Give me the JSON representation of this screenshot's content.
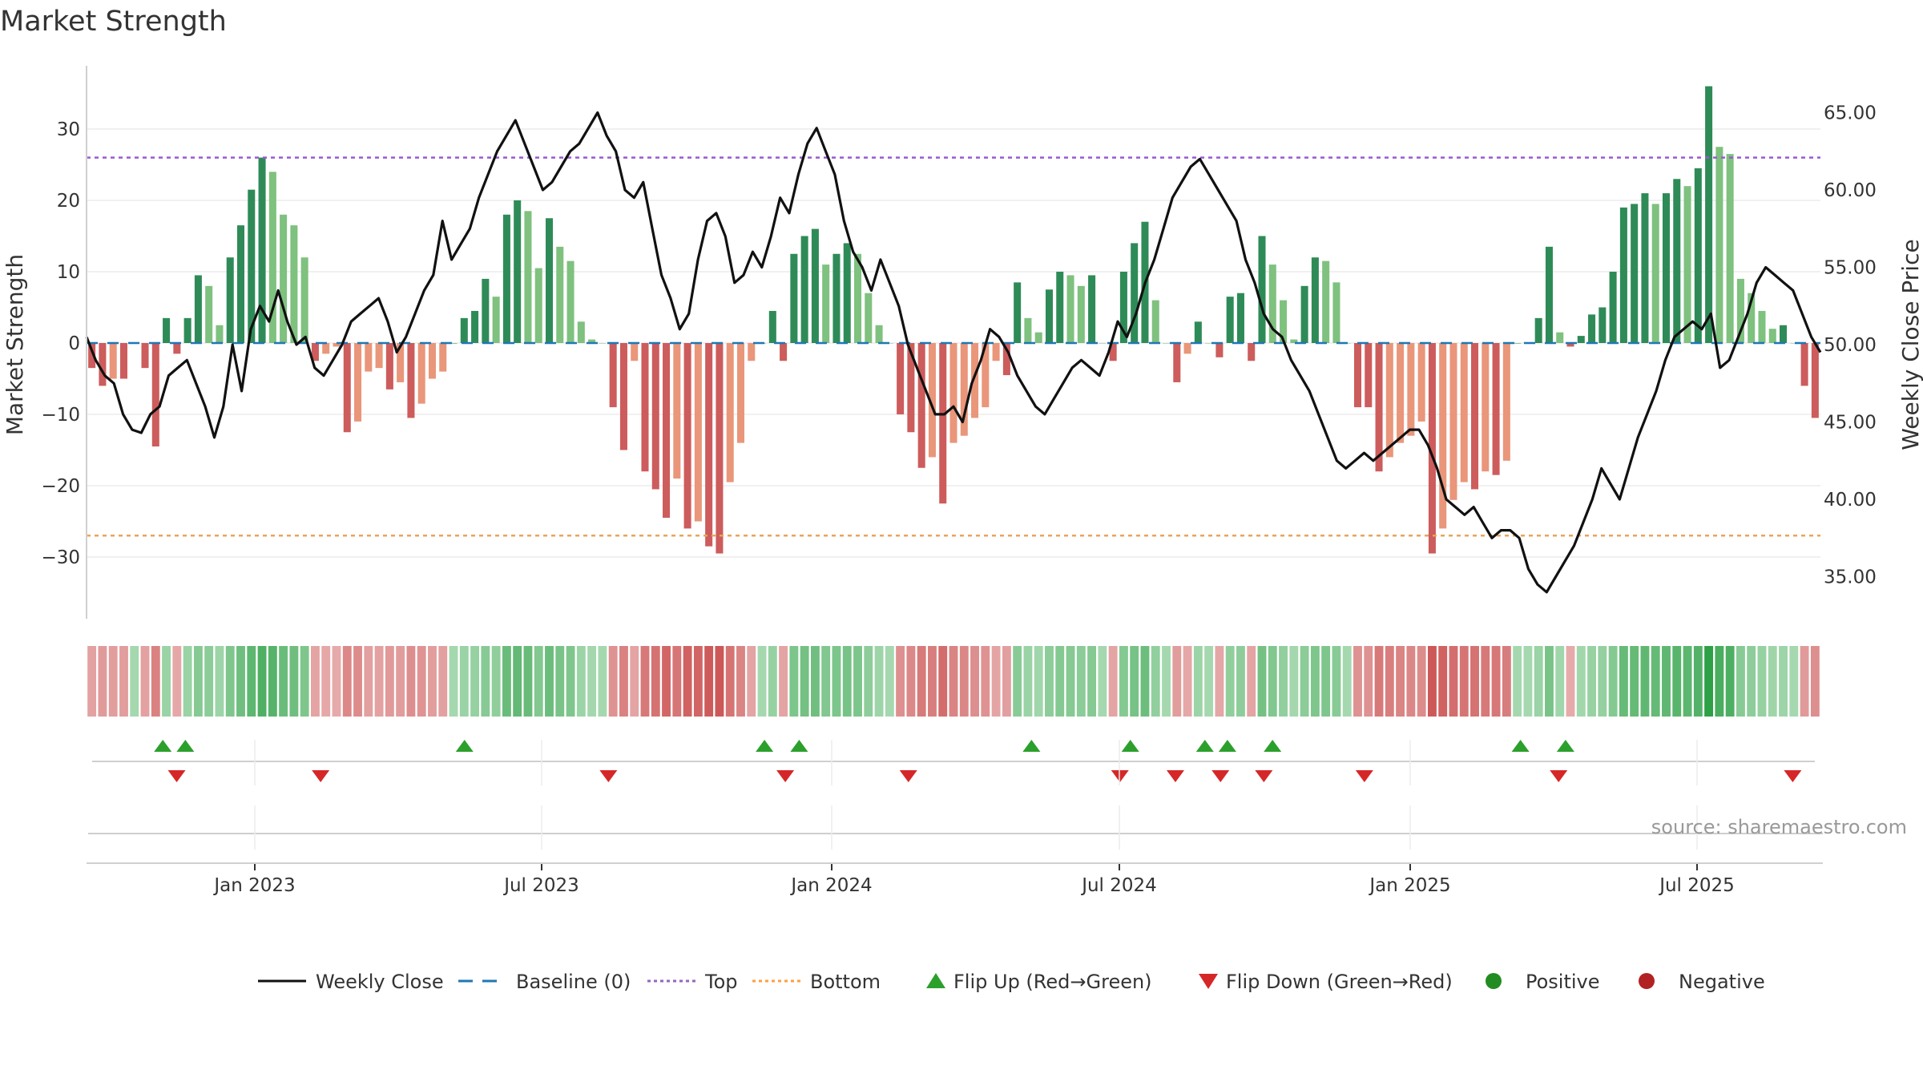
{
  "chart_data": {
    "type": "bar",
    "title": "Market Strength",
    "source": "source: sharemaestro.com",
    "x_ticks": [
      "Jan 2023",
      "Jul 2023",
      "Jan 2024",
      "Jul 2024",
      "Jan 2025",
      "Jul 2025"
    ],
    "left_axis": {
      "label": "Market Strength",
      "ticks": [
        "30",
        "20",
        "10",
        "0",
        "−10",
        "−20",
        "−30"
      ],
      "ylim": [
        -39,
        39
      ]
    },
    "right_axis": {
      "label": "Weekly Close Price",
      "ticks": [
        "65.00",
        "60.00",
        "55.00",
        "50.00",
        "45.00",
        "40.00",
        "35.00"
      ],
      "ylim": [
        32,
        68
      ]
    },
    "top_threshold": 26,
    "bottom_threshold": -27,
    "strength": [
      -3.5,
      -6,
      -5,
      -5,
      0,
      -3.5,
      -14.5,
      3.5,
      -1.5,
      3.5,
      9.5,
      8,
      2.5,
      12,
      16.5,
      21.5,
      26,
      24,
      18,
      16.5,
      12,
      -2.5,
      -1.5,
      -0.5,
      -12.5,
      -11,
      -4,
      -3.5,
      -6.5,
      -5.5,
      -10.5,
      -8.5,
      -5,
      -4,
      0,
      3.5,
      4.5,
      9,
      6.5,
      18,
      20,
      18.5,
      10.5,
      17.5,
      13.5,
      11.5,
      3,
      0.5,
      0,
      -9,
      -15,
      -2.5,
      -18,
      -20.5,
      -24.5,
      -19,
      -26,
      -25,
      -28.5,
      -29.5,
      -19.5,
      -14,
      -2.5,
      0,
      4.5,
      -2.5,
      12.5,
      15,
      16,
      11,
      12.5,
      14,
      12.5,
      7,
      2.5,
      0,
      -10,
      -12.5,
      -17.5,
      -16,
      -22.5,
      -14,
      -13,
      -10.5,
      -9,
      -2.5,
      -4.5,
      8.5,
      3.5,
      1.5,
      7.5,
      10,
      9.5,
      8,
      9.5,
      0,
      -2.5,
      10,
      14,
      17,
      6,
      0,
      -5.5,
      -1.5,
      3,
      0,
      -2,
      6.5,
      7,
      -2.5,
      15,
      11,
      6,
      0.5,
      8,
      12,
      11.5,
      8.5,
      0,
      -9,
      -9,
      -18,
      -16,
      -14,
      -13,
      -11,
      -29.5,
      -26,
      -22,
      -19.5,
      -20.5,
      -18,
      -18.5,
      -16.5,
      0,
      0,
      3.5,
      13.5,
      1.5,
      -0.5,
      1,
      4,
      5,
      10,
      19,
      19.5,
      21,
      19.5,
      21,
      23,
      22,
      24.5,
      36,
      27.5,
      26.5,
      9,
      7,
      4.5,
      2,
      2.5,
      0,
      -6,
      -10.5
    ],
    "close": [
      50.5,
      49,
      48,
      47.5,
      45.5,
      44.5,
      44.3,
      45.5,
      46,
      48,
      48.5,
      49,
      47.5,
      46,
      44,
      46,
      50,
      47,
      51,
      52.5,
      51.5,
      53.5,
      51.5,
      50,
      50.5,
      48.5,
      48,
      49,
      50,
      51.5,
      52,
      52.5,
      53,
      51.5,
      49.5,
      50.5,
      52,
      53.5,
      54.5,
      58,
      55.5,
      56.5,
      57.5,
      59.5,
      61,
      62.5,
      63.5,
      64.5,
      63,
      61.5,
      60,
      60.5,
      61.5,
      62.5,
      63,
      64,
      65,
      63.5,
      62.5,
      60,
      59.5,
      60.5,
      57.5,
      54.5,
      53,
      51,
      52,
      55.5,
      58,
      58.5,
      57,
      54,
      54.5,
      56,
      55,
      57,
      59.5,
      58.5,
      61,
      63,
      64,
      62.5,
      61,
      58,
      56,
      55,
      53.5,
      55.5,
      54,
      52.5,
      50,
      48.5,
      47,
      45.5,
      45.5,
      46,
      45,
      47.5,
      49,
      51,
      50.5,
      49.5,
      48,
      47,
      46,
      45.5,
      46.5,
      47.5,
      48.5,
      49,
      48.5,
      48,
      49.5,
      51.5,
      50.5,
      52,
      54,
      55.5,
      57.5,
      59.5,
      60.5,
      61.5,
      62,
      61,
      60,
      59,
      58,
      55.5,
      54,
      52,
      51,
      50.5,
      49,
      48,
      47,
      45.5,
      44,
      42.5,
      42,
      42.5,
      43,
      42.5,
      43,
      43.5,
      44,
      44.5,
      44.5,
      43.5,
      42,
      40,
      39.5,
      39,
      39.5,
      38.5,
      37.5,
      38,
      38,
      37.5,
      35.5,
      34.5,
      34,
      35,
      36,
      37,
      38.5,
      40,
      42,
      41,
      40,
      42,
      44,
      45.5,
      47,
      49,
      50.5,
      51,
      51.5,
      51,
      52,
      48.5,
      49,
      50.5,
      52,
      54,
      55,
      54.5,
      54,
      53.5,
      52,
      50.5,
      49.5
    ],
    "flip_up_positions": [
      0.044,
      0.057,
      0.218,
      0.391,
      0.411,
      0.545,
      0.602,
      0.645,
      0.658,
      0.684,
      0.827,
      0.853
    ],
    "flip_down_positions": [
      0.052,
      0.135,
      0.301,
      0.403,
      0.474,
      0.596,
      0.628,
      0.654,
      0.679,
      0.737,
      0.849,
      0.984
    ],
    "legend": [
      {
        "label": "Weekly Close",
        "kind": "line",
        "color": "#111111"
      },
      {
        "label": "Baseline (0)",
        "kind": "dash",
        "color": "#1f77b4"
      },
      {
        "label": "Top",
        "kind": "dot",
        "color": "#9467bd"
      },
      {
        "label": "Bottom",
        "kind": "dot",
        "color": "#ff9f43"
      },
      {
        "label": "Flip Up (Red→Green)",
        "kind": "up",
        "color": "#2ca02c"
      },
      {
        "label": "Flip Down (Green→Red)",
        "kind": "down",
        "color": "#d62728"
      },
      {
        "label": "Positive",
        "kind": "dot-marker",
        "color": "#228b22"
      },
      {
        "label": "Negative",
        "kind": "dot-marker",
        "color": "#b22222"
      }
    ],
    "colors": {
      "pos_strong": "#2e8b57",
      "pos_light": "#7fc17f",
      "neg_strong": "#cd5c5c",
      "neg_light": "#e9967a",
      "top_line": "#9b59d0",
      "bottom_line": "#e8a55a",
      "baseline": "#1f77b4",
      "close": "#111111"
    }
  }
}
